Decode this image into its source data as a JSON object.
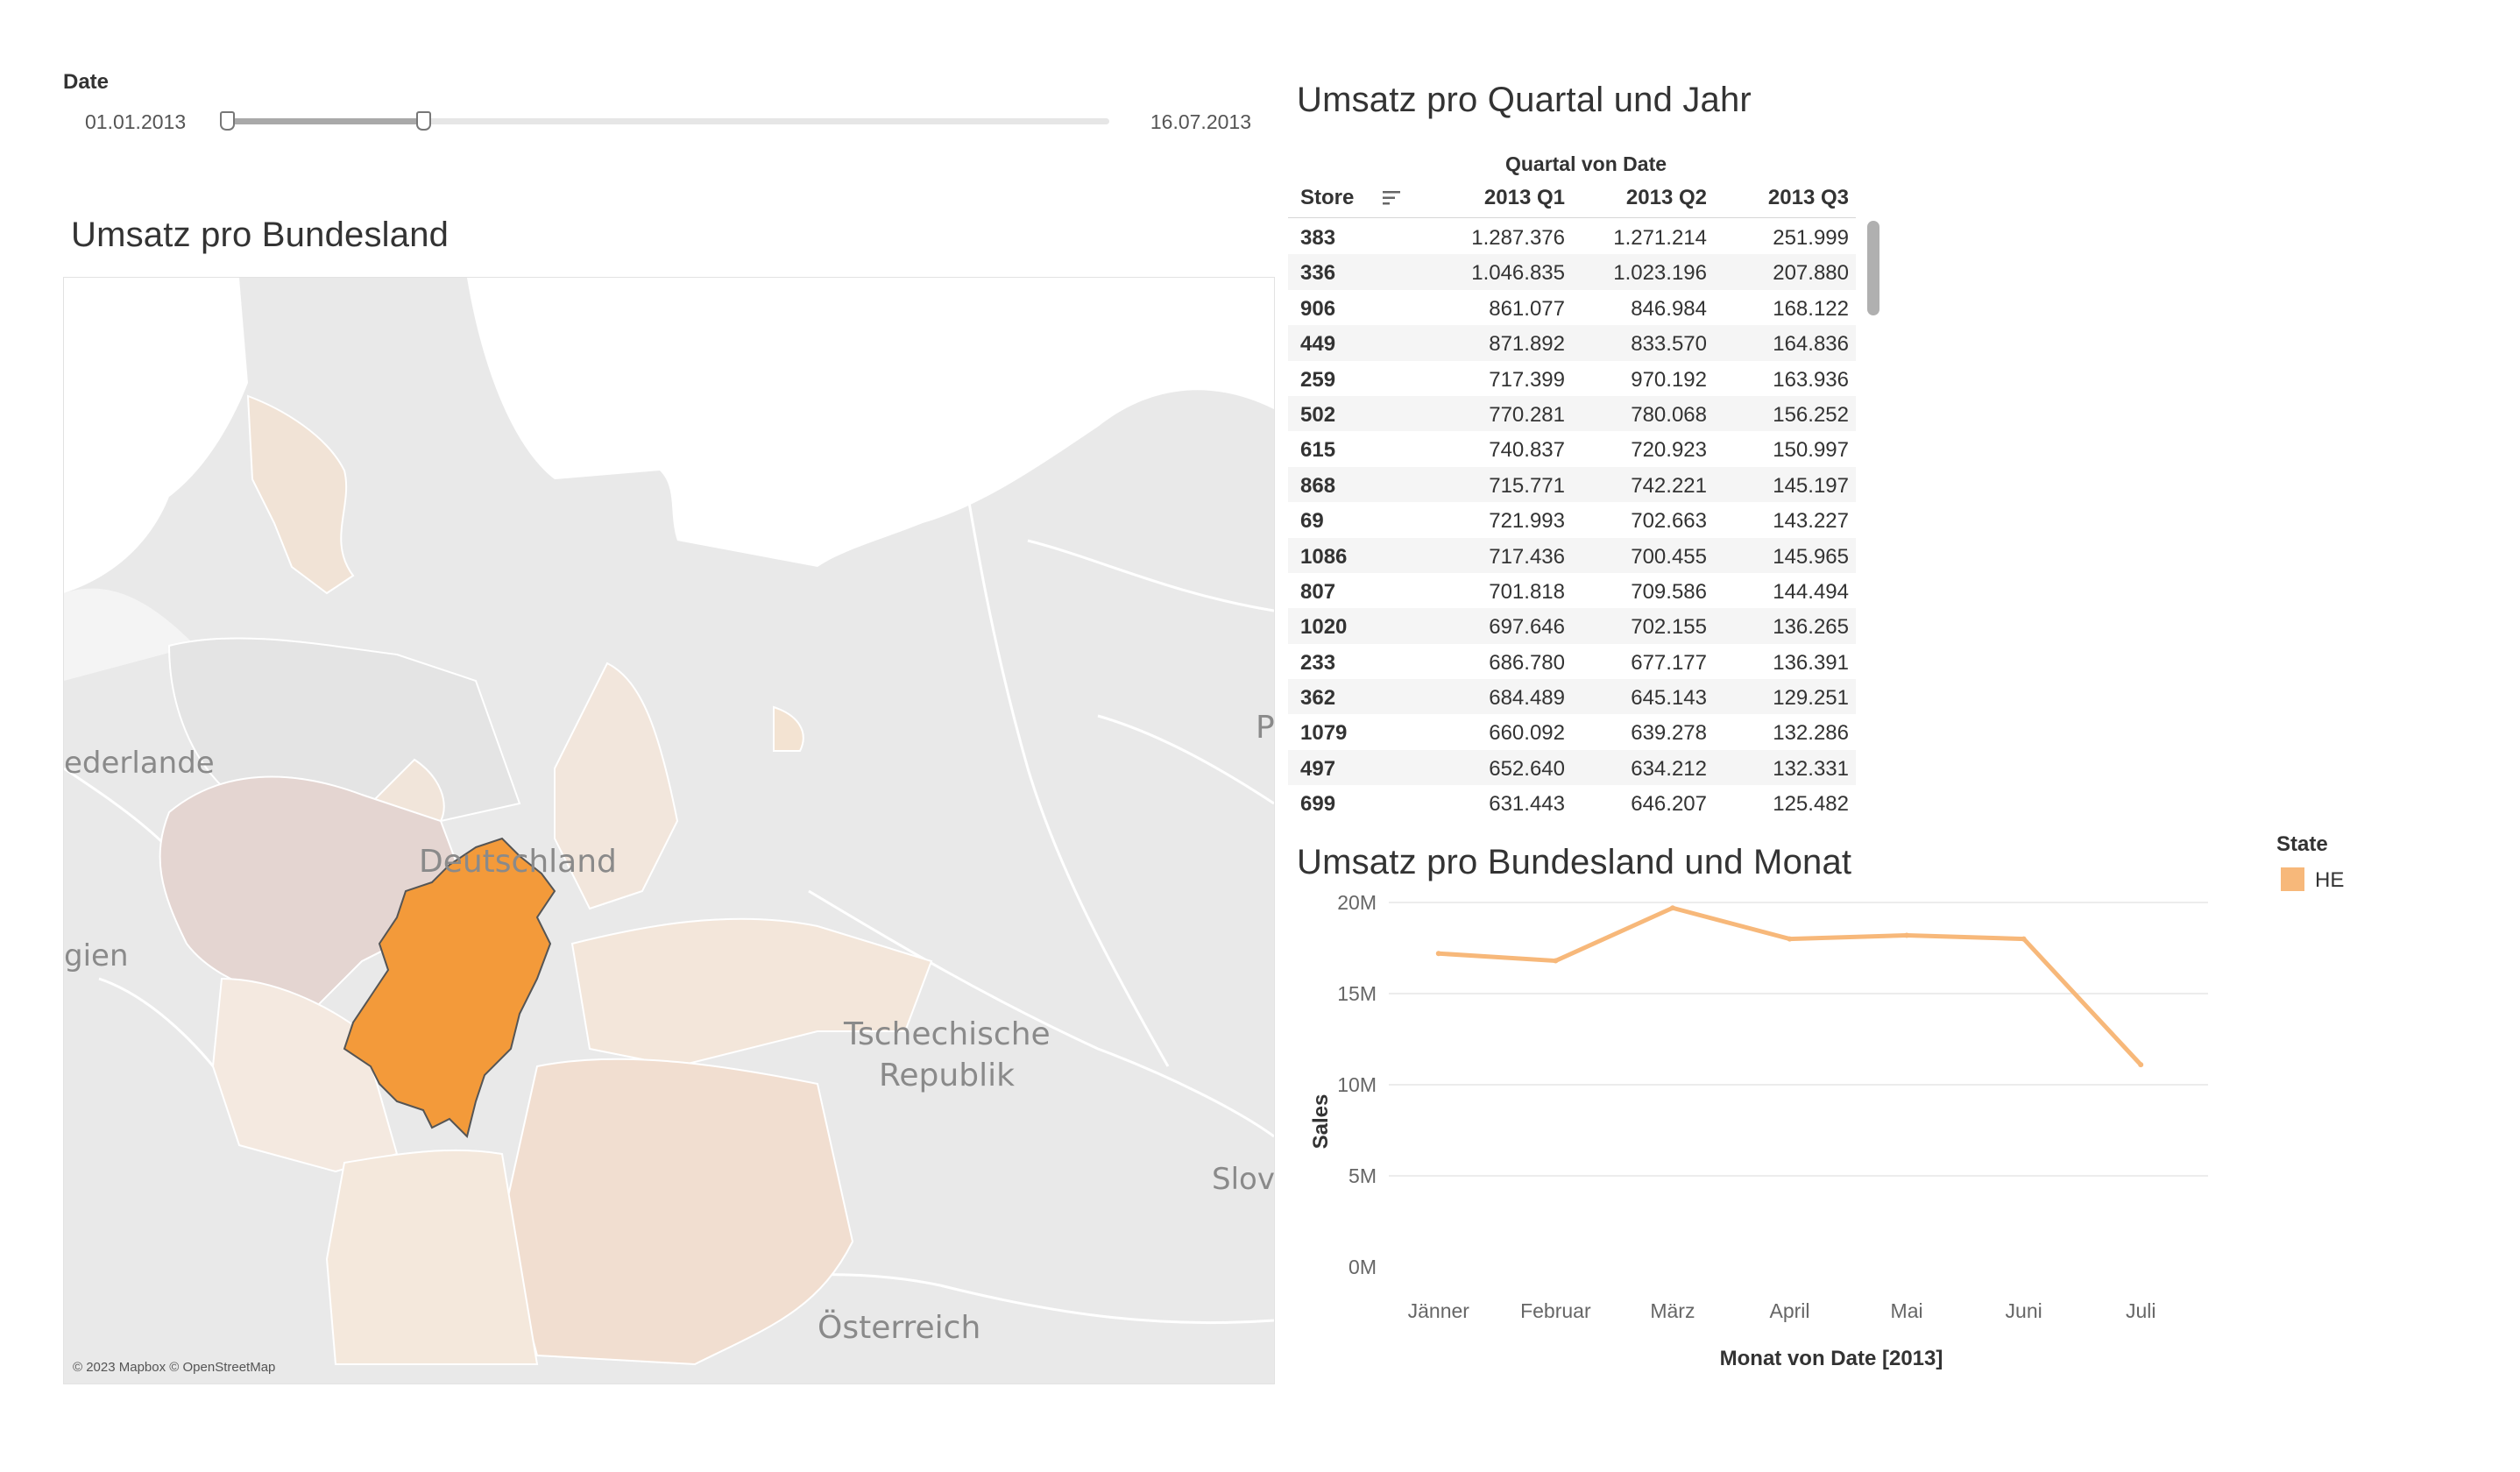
{
  "filter": {
    "label": "Date",
    "start": "01.01.2013",
    "end": "16.07.2013"
  },
  "map": {
    "title": "Umsatz pro Bundesland",
    "credit": "© 2023 Mapbox © OpenStreetMap",
    "labels": {
      "niederlande": "ederlande",
      "deutschland": "Deutschland",
      "belgien": "gien",
      "tschechien_1": "Tschechische",
      "tschechien_2": "Republik",
      "oesterreich": "Österreich",
      "slowakei": "Slov",
      "polen": "P"
    },
    "colors": {
      "highlight": "#f39a3a",
      "light": "#f3e3d6",
      "base": "#ececec"
    }
  },
  "table": {
    "title": "Umsatz pro Quartal und Jahr",
    "column_group": "Quartal von Date",
    "store_header": "Store",
    "quarters": [
      "2013 Q1",
      "2013 Q2",
      "2013 Q3"
    ],
    "rows": [
      {
        "store": "383",
        "q1": "1.287.376",
        "q2": "1.271.214",
        "q3": "251.999"
      },
      {
        "store": "336",
        "q1": "1.046.835",
        "q2": "1.023.196",
        "q3": "207.880"
      },
      {
        "store": "906",
        "q1": "861.077",
        "q2": "846.984",
        "q3": "168.122"
      },
      {
        "store": "449",
        "q1": "871.892",
        "q2": "833.570",
        "q3": "164.836"
      },
      {
        "store": "259",
        "q1": "717.399",
        "q2": "970.192",
        "q3": "163.936"
      },
      {
        "store": "502",
        "q1": "770.281",
        "q2": "780.068",
        "q3": "156.252"
      },
      {
        "store": "615",
        "q1": "740.837",
        "q2": "720.923",
        "q3": "150.997"
      },
      {
        "store": "868",
        "q1": "715.771",
        "q2": "742.221",
        "q3": "145.197"
      },
      {
        "store": "69",
        "q1": "721.993",
        "q2": "702.663",
        "q3": "143.227"
      },
      {
        "store": "1086",
        "q1": "717.436",
        "q2": "700.455",
        "q3": "145.965"
      },
      {
        "store": "807",
        "q1": "701.818",
        "q2": "709.586",
        "q3": "144.494"
      },
      {
        "store": "1020",
        "q1": "697.646",
        "q2": "702.155",
        "q3": "136.265"
      },
      {
        "store": "233",
        "q1": "686.780",
        "q2": "677.177",
        "q3": "136.391"
      },
      {
        "store": "362",
        "q1": "684.489",
        "q2": "645.143",
        "q3": "129.251"
      },
      {
        "store": "1079",
        "q1": "660.092",
        "q2": "639.278",
        "q3": "132.286"
      },
      {
        "store": "497",
        "q1": "652.640",
        "q2": "634.212",
        "q3": "132.331"
      },
      {
        "store": "699",
        "q1": "631.443",
        "q2": "646.207",
        "q3": "125.482"
      }
    ]
  },
  "legend": {
    "title": "State",
    "items": [
      {
        "label": "HE",
        "color": "#f7b87a"
      }
    ]
  },
  "chart_data": {
    "type": "line",
    "title": "Umsatz pro Bundesland und Monat",
    "xlabel": "Monat von Date [2013]",
    "ylabel": "Sales",
    "categories": [
      "Jänner",
      "Februar",
      "März",
      "April",
      "Mai",
      "Juni",
      "Juli"
    ],
    "series": [
      {
        "name": "HE",
        "values": [
          17.2,
          16.8,
          19.7,
          18.0,
          18.2,
          18.0,
          11.1
        ],
        "color": "#f7b87a"
      }
    ],
    "y_ticks": [
      "0M",
      "5M",
      "10M",
      "15M",
      "20M"
    ],
    "ylim": [
      0,
      20
    ],
    "grid": "horizontal",
    "legend": "top-right"
  }
}
